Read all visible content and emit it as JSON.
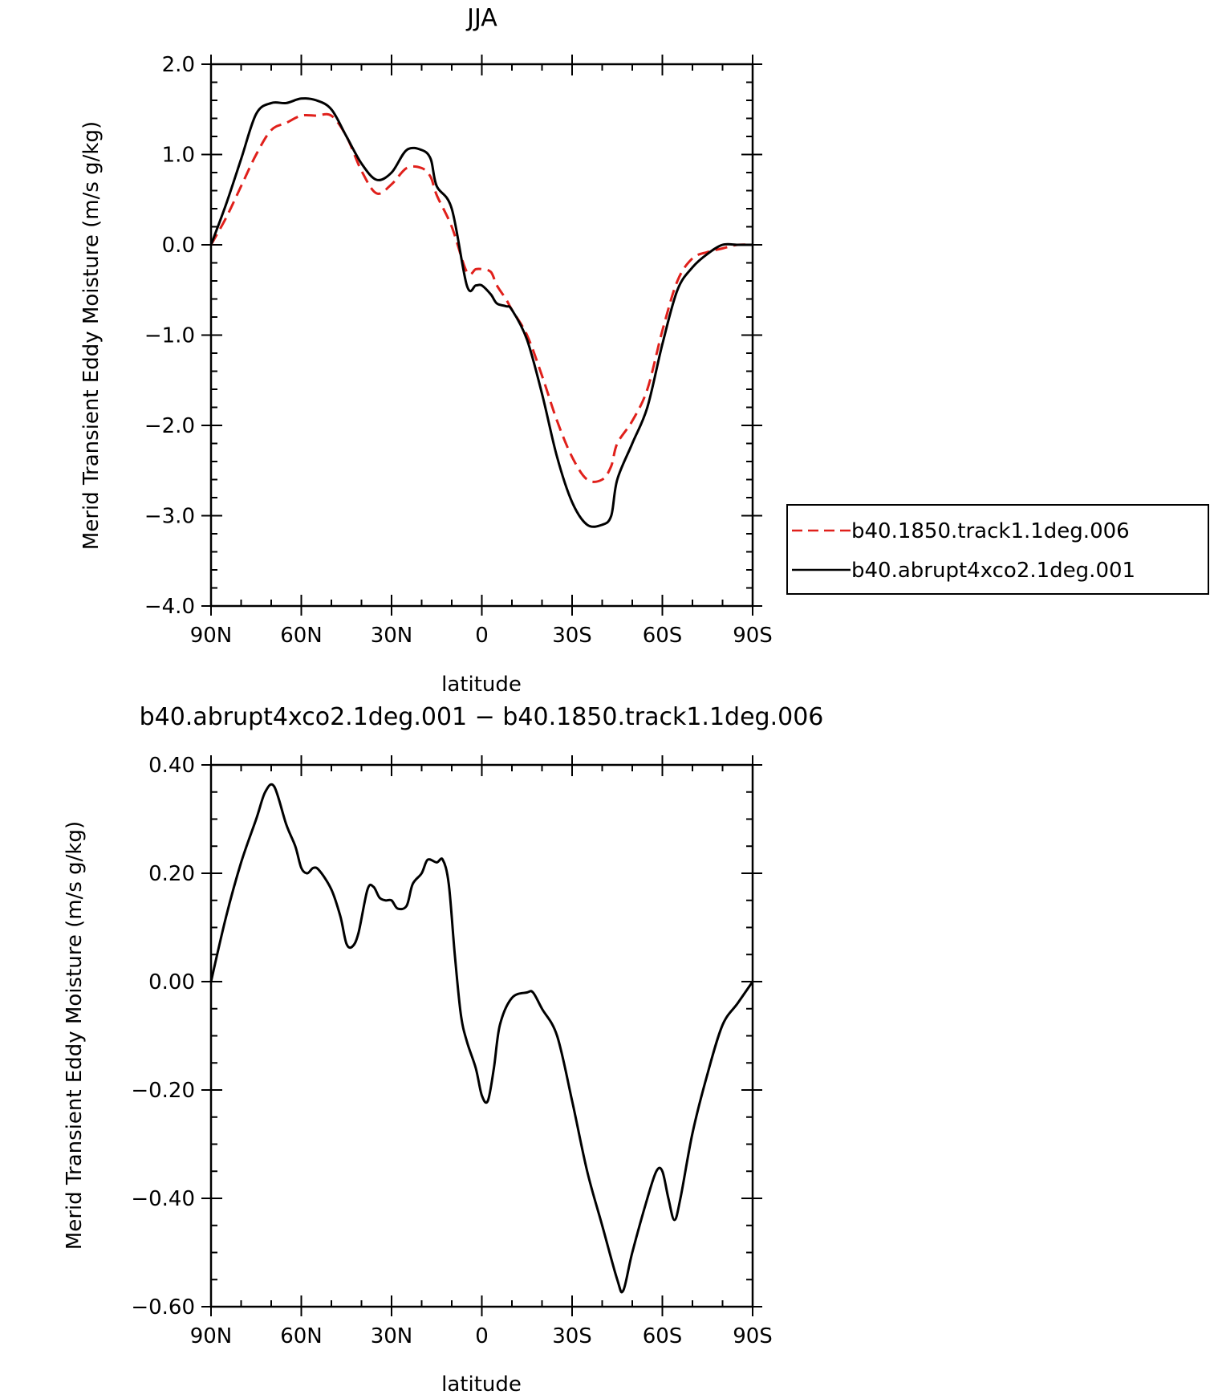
{
  "chart_data": [
    {
      "type": "line",
      "title": "JJA",
      "xlabel": "latitude",
      "ylabel": "Merid Transient Eddy Moisture (m/s g/kg)",
      "xlim": [
        90,
        -90
      ],
      "ylim": [
        -4.0,
        2.0
      ],
      "xticks": [
        90,
        60,
        30,
        0,
        -30,
        -60,
        -90
      ],
      "xtick_labels": [
        "90N",
        "60N",
        "30N",
        "0",
        "30S",
        "60S",
        "90S"
      ],
      "yticks": [
        2.0,
        1.0,
        0.0,
        -1.0,
        -2.0,
        -3.0,
        -4.0
      ],
      "ytick_labels": [
        "2.0",
        "1.0",
        "0.0",
        "−1.0",
        "−2.0",
        "−3.0",
        "−4.0"
      ],
      "legend_position": "outside-right",
      "series": [
        {
          "name": "b40.1850.track1.1deg.006",
          "color": "#e0201b",
          "style": "dashed",
          "x": [
            90,
            85,
            80,
            75,
            70,
            65,
            60,
            55,
            50,
            45,
            40,
            35,
            30,
            25,
            20,
            17,
            15,
            10,
            5,
            2,
            0,
            -3,
            -5,
            -8,
            -10,
            -15,
            -20,
            -25,
            -30,
            -35,
            -40,
            -43,
            -45,
            -50,
            -55,
            -60,
            -65,
            -70,
            -75,
            -80,
            -85,
            -90
          ],
          "y": [
            0.0,
            0.3,
            0.65,
            1.0,
            1.27,
            1.35,
            1.43,
            1.43,
            1.43,
            1.2,
            0.82,
            0.57,
            0.67,
            0.85,
            0.85,
            0.75,
            0.55,
            0.2,
            -0.3,
            -0.27,
            -0.27,
            -0.3,
            -0.45,
            -0.6,
            -0.72,
            -1.0,
            -1.45,
            -1.95,
            -2.35,
            -2.6,
            -2.6,
            -2.45,
            -2.2,
            -1.95,
            -1.6,
            -0.95,
            -0.4,
            -0.15,
            -0.08,
            -0.04,
            0.0,
            0.0
          ]
        },
        {
          "name": "b40.abrupt4xco2.1deg.001",
          "color": "#000000",
          "style": "solid",
          "x": [
            90,
            85,
            80,
            75,
            70,
            65,
            60,
            55,
            50,
            45,
            40,
            35,
            30,
            25,
            20,
            17,
            15,
            10,
            5,
            2,
            0,
            -3,
            -5,
            -8,
            -10,
            -15,
            -20,
            -25,
            -30,
            -35,
            -40,
            -43,
            -45,
            -50,
            -55,
            -60,
            -65,
            -70,
            -75,
            -80,
            -85,
            -90
          ],
          "y": [
            0.0,
            0.45,
            0.95,
            1.45,
            1.57,
            1.57,
            1.62,
            1.6,
            1.5,
            1.2,
            0.9,
            0.72,
            0.8,
            1.05,
            1.05,
            0.95,
            0.65,
            0.4,
            -0.45,
            -0.45,
            -0.45,
            -0.55,
            -0.65,
            -0.68,
            -0.72,
            -1.05,
            -1.65,
            -2.35,
            -2.85,
            -3.1,
            -3.1,
            -3.0,
            -2.6,
            -2.2,
            -1.8,
            -1.1,
            -0.5,
            -0.25,
            -0.1,
            0.0,
            0.0,
            0.0
          ]
        }
      ]
    },
    {
      "type": "line",
      "title": "b40.abrupt4xco2.1deg.001 − b40.1850.track1.1deg.006",
      "xlabel": "latitude",
      "ylabel": "Merid Transient Eddy Moisture (m/s g/kg)",
      "xlim": [
        90,
        -90
      ],
      "ylim": [
        -0.6,
        0.4
      ],
      "xticks": [
        90,
        60,
        30,
        0,
        -30,
        -60,
        -90
      ],
      "xtick_labels": [
        "90N",
        "60N",
        "30N",
        "0",
        "30S",
        "60S",
        "90S"
      ],
      "yticks": [
        0.4,
        0.2,
        0.0,
        -0.2,
        -0.4,
        -0.6
      ],
      "ytick_labels": [
        "0.40",
        "0.20",
        "0.00",
        "−0.20",
        "−0.40",
        "−0.60"
      ],
      "series": [
        {
          "color": "#000000",
          "style": "solid",
          "x": [
            90,
            85,
            80,
            75,
            72,
            69,
            65,
            62,
            60,
            58,
            56,
            54,
            50,
            47,
            45,
            43,
            41,
            38,
            36,
            34,
            32,
            30,
            28,
            25,
            23,
            20,
            18,
            15,
            13,
            11,
            9,
            7,
            5,
            2,
            0,
            -2,
            -4,
            -6,
            -10,
            -15,
            -17,
            -20,
            -25,
            -30,
            -35,
            -40,
            -45,
            -47,
            -50,
            -55,
            -58,
            -60,
            -62,
            -64,
            -66,
            -70,
            -75,
            -80,
            -85,
            -90
          ],
          "y": [
            0.0,
            0.12,
            0.22,
            0.3,
            0.35,
            0.36,
            0.29,
            0.25,
            0.21,
            0.2,
            0.21,
            0.205,
            0.17,
            0.12,
            0.07,
            0.065,
            0.09,
            0.17,
            0.175,
            0.155,
            0.15,
            0.15,
            0.135,
            0.14,
            0.18,
            0.2,
            0.225,
            0.22,
            0.225,
            0.18,
            0.05,
            -0.06,
            -0.11,
            -0.16,
            -0.21,
            -0.22,
            -0.16,
            -0.08,
            -0.03,
            -0.02,
            -0.02,
            -0.05,
            -0.1,
            -0.22,
            -0.35,
            -0.45,
            -0.55,
            -0.57,
            -0.5,
            -0.4,
            -0.35,
            -0.35,
            -0.4,
            -0.44,
            -0.4,
            -0.28,
            -0.17,
            -0.08,
            -0.04,
            0.0
          ]
        }
      ]
    }
  ]
}
